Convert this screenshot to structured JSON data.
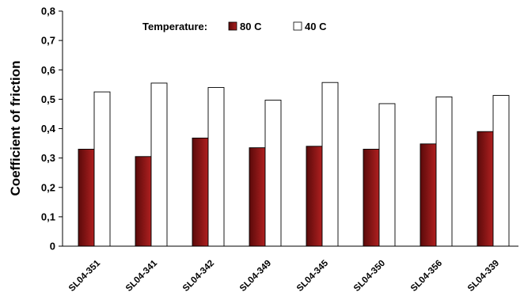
{
  "chart_data": {
    "type": "bar",
    "title": "",
    "xlabel": "",
    "ylabel": "Coefficient of friction",
    "ylim": [
      0,
      0.8
    ],
    "yticks": [
      "0",
      "0,1",
      "0,2",
      "0,3",
      "0,4",
      "0,5",
      "0,6",
      "0,7",
      "0,8"
    ],
    "ytick_values": [
      0,
      0.1,
      0.2,
      0.3,
      0.4,
      0.5,
      0.6,
      0.7,
      0.8
    ],
    "categories": [
      "SL04-351",
      "SL04-341",
      "SL04-342",
      "SL04-349",
      "SL04-345",
      "SL04-350",
      "SL04-356",
      "SL04-339"
    ],
    "legend_title": "Temperature:",
    "legend_position": "top-center",
    "grid": false,
    "series": [
      {
        "name": "80 C",
        "color_dark": "#5a0a0a",
        "color_light": "#b02020",
        "values": [
          0.33,
          0.305,
          0.368,
          0.335,
          0.34,
          0.33,
          0.348,
          0.39
        ]
      },
      {
        "name": "40 C",
        "color": "#ffffff",
        "values": [
          0.525,
          0.555,
          0.54,
          0.497,
          0.557,
          0.485,
          0.508,
          0.513
        ]
      }
    ]
  }
}
